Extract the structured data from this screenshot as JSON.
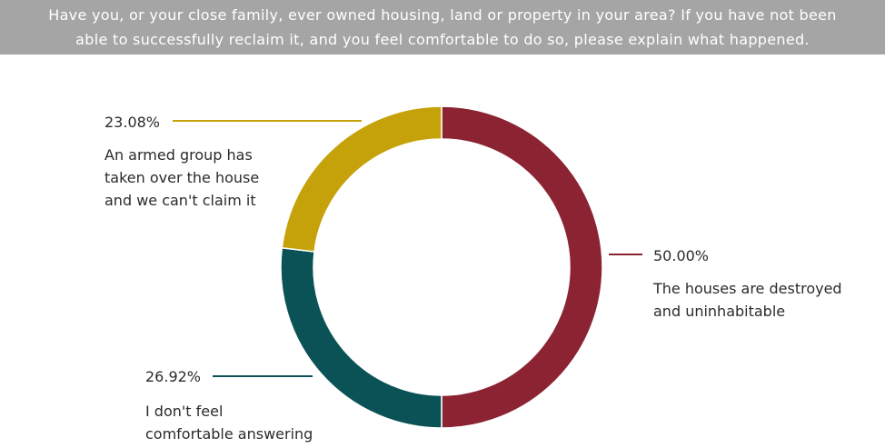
{
  "title": {
    "line1": "Have you, or your close family, ever owned housing, land or property in your area? If you have not been",
    "line2": "able to successfully reclaim it, and you feel comfortable to do so, please explain what happened."
  },
  "chart_data": {
    "type": "pie",
    "donut": true,
    "slices": [
      {
        "label_lines": [
          "The houses are destroyed",
          "and uninhabitable"
        ],
        "value": 50.0,
        "value_label": "50.00%",
        "color": "#8b2332"
      },
      {
        "label_lines": [
          "I don't feel",
          "comfortable answering"
        ],
        "value": 26.92,
        "value_label": "26.92%",
        "color": "#0b5256"
      },
      {
        "label_lines": [
          "An armed group has",
          "taken over the house",
          "and we can't claim it"
        ],
        "value": 23.08,
        "value_label": "23.08%",
        "color": "#c6a20a"
      }
    ]
  }
}
